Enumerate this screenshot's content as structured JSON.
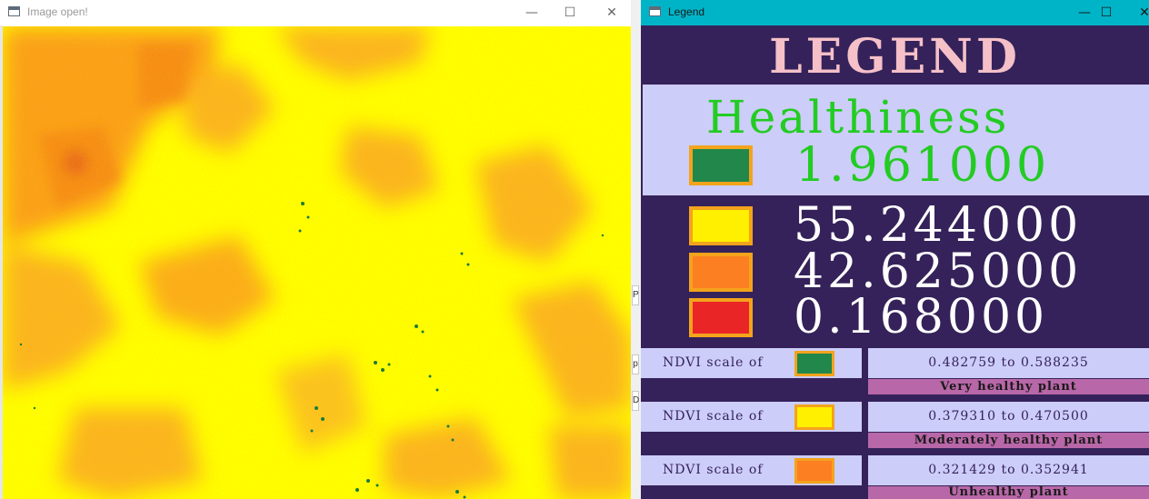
{
  "image_window": {
    "title": "Image open!",
    "controls": {
      "minimize": "—",
      "maximize": "☐",
      "close": "✕"
    },
    "gap_fragments": [
      "P",
      "p",
      "D"
    ]
  },
  "legend_window": {
    "title": "Legend",
    "controls": {
      "minimize": "—",
      "maximize": "☐",
      "close": "✕"
    },
    "heading": "LEGEND",
    "healthiness_label": "Healthiness",
    "percentages": [
      {
        "color": "#21874b",
        "value": "1.961000"
      },
      {
        "color": "#fff000",
        "value": "55.244000"
      },
      {
        "color": "#fc7f22",
        "value": "42.625000"
      },
      {
        "color": "#ea2526",
        "value": "0.168000"
      }
    ],
    "scale_rows": [
      {
        "label": "NDVI scale of",
        "color": "#21874b",
        "range": "0.482759  to  0.588235",
        "description": "Very healthy plant"
      },
      {
        "label": "NDVI scale of",
        "color": "#fff000",
        "range": "0.379310  to  0.470500",
        "description": "Moderately healthy plant"
      },
      {
        "label": "NDVI scale of",
        "color": "#fc7f22",
        "range": "0.321429  to  0.352941",
        "description": "Unhealthy plant"
      }
    ],
    "colors": {
      "background": "#35225a",
      "panel": "#cccdf8",
      "description_bar": "#b867a8",
      "heading": "#f5c0c8",
      "healthiness": "#22cc22",
      "swatch_border": "#f4a31c"
    }
  }
}
